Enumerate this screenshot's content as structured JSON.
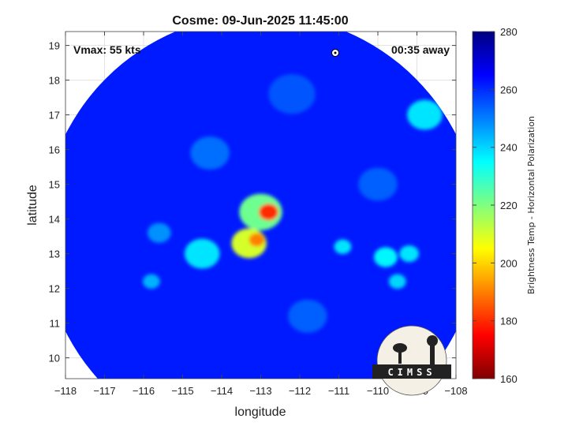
{
  "chart_data": {
    "type": "heatmap",
    "title": "Cosme: 09-Jun-2025 11:45:00",
    "xlabel": "longitude",
    "ylabel": "latitude",
    "xlim": [
      -118,
      -108
    ],
    "ylim": [
      9.4,
      19.4
    ],
    "xticks": [
      -118,
      -117,
      -116,
      -115,
      -114,
      -113,
      -112,
      -111,
      -110,
      -109,
      -108
    ],
    "yticks": [
      10,
      11,
      12,
      13,
      14,
      15,
      16,
      17,
      18,
      19
    ],
    "grid": true,
    "annotations": {
      "vmax": "Vmax: 55 kts",
      "time_away": "00:35 away"
    },
    "colorbar": {
      "label": "Brightness Temp - Horizontal Polarization",
      "range": [
        160,
        280
      ],
      "ticks": [
        160,
        180,
        200,
        220,
        240,
        260,
        280
      ],
      "colormap": "jet"
    },
    "swath": {
      "center_lon": -113,
      "center_lat": 13.6,
      "radius_deg": 5.6
    },
    "background_value": 262,
    "features": [
      {
        "lon": -112.8,
        "lat": 14.2,
        "value": 180,
        "spread": 0.25
      },
      {
        "lon": -113.0,
        "lat": 14.2,
        "value": 222,
        "spread": 0.55
      },
      {
        "lon": -113.1,
        "lat": 13.4,
        "value": 190,
        "spread": 0.2
      },
      {
        "lon": -113.3,
        "lat": 13.3,
        "value": 210,
        "spread": 0.45
      },
      {
        "lon": -114.5,
        "lat": 13.0,
        "value": 238,
        "spread": 0.45
      },
      {
        "lon": -110.9,
        "lat": 13.2,
        "value": 238,
        "spread": 0.22
      },
      {
        "lon": -109.8,
        "lat": 12.9,
        "value": 236,
        "spread": 0.3
      },
      {
        "lon": -109.2,
        "lat": 13.0,
        "value": 238,
        "spread": 0.25
      },
      {
        "lon": -109.5,
        "lat": 12.2,
        "value": 240,
        "spread": 0.22
      },
      {
        "lon": -108.8,
        "lat": 17.0,
        "value": 238,
        "spread": 0.45
      },
      {
        "lon": -115.8,
        "lat": 12.2,
        "value": 244,
        "spread": 0.22
      },
      {
        "lon": -114.3,
        "lat": 15.9,
        "value": 252,
        "spread": 0.5
      },
      {
        "lon": -111.8,
        "lat": 11.2,
        "value": 254,
        "spread": 0.5
      },
      {
        "lon": -112.2,
        "lat": 17.6,
        "value": 255,
        "spread": 0.6
      },
      {
        "lon": -115.6,
        "lat": 13.6,
        "value": 248,
        "spread": 0.3
      },
      {
        "lon": -110.0,
        "lat": 15.0,
        "value": 254,
        "spread": 0.5
      }
    ],
    "logo_text": "CIMSS"
  }
}
